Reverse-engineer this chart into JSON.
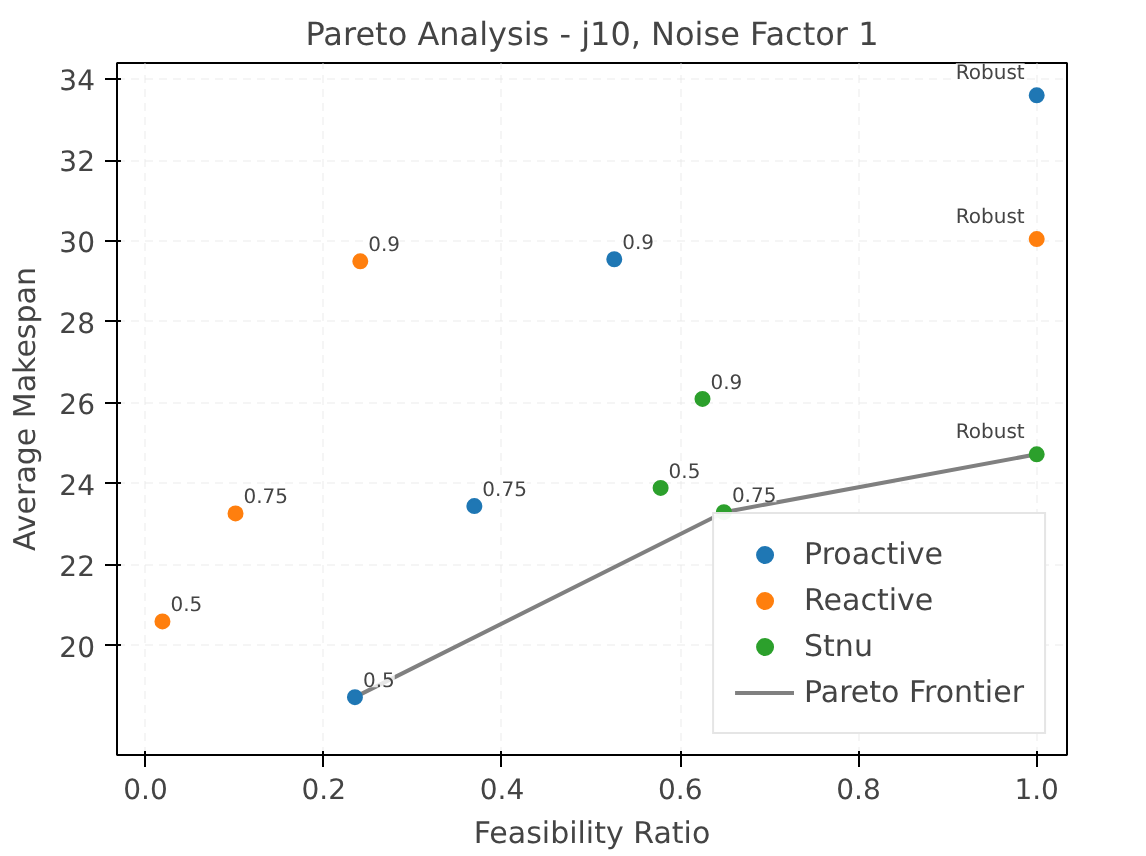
{
  "chart_data": {
    "type": "scatter",
    "title": "Pareto Analysis - j10, Noise Factor 1",
    "xlabel": "Feasibility Ratio",
    "ylabel": "Average Makespan",
    "xlim": [
      -0.032,
      1.034
    ],
    "ylim": [
      17.3,
      34.4
    ],
    "xticks": [
      {
        "value": 0,
        "label": "0.0"
      },
      0.2,
      0.4,
      0.6,
      0.8,
      {
        "value": 1,
        "label": "1.0"
      }
    ],
    "yticks": [
      20,
      22,
      24,
      26,
      28,
      30,
      32,
      34
    ],
    "grid": true,
    "legend": "bottom right",
    "series": [
      {
        "name": "Proactive",
        "color": "#1f77b4",
        "marker": "circle",
        "x": [
          1.0,
          0.526,
          0.369,
          0.235
        ],
        "values": [
          33.6,
          29.55,
          23.45,
          18.73
        ]
      },
      {
        "name": "Reactive",
        "color": "#ff7f0e",
        "marker": "circle",
        "x": [
          1.0,
          0.241,
          0.101,
          0.019
        ],
        "values": [
          30.05,
          29.5,
          23.27,
          20.6
        ]
      },
      {
        "name": "Stnu",
        "color": "#2ca02c",
        "marker": "circle",
        "x": [
          1.0,
          0.625,
          0.578,
          0.649
        ],
        "values": [
          24.73,
          26.1,
          23.9,
          23.3
        ]
      },
      {
        "name": "Pareto Frontier",
        "type": "line",
        "color": "#808080",
        "x": [
          0.235,
          0.649,
          1.0
        ],
        "values": [
          18.73,
          23.3,
          24.73
        ]
      }
    ],
    "annotations": [
      {
        "text": "Robust",
        "x": 1.0,
        "y": 33.6
      },
      {
        "text": "0.9",
        "x": 0.526,
        "y": 29.55
      },
      {
        "text": "0.75",
        "x": 0.369,
        "y": 23.45
      },
      {
        "text": "0.5",
        "x": 0.235,
        "y": 18.73
      },
      {
        "text": "Robust",
        "x": 1.0,
        "y": 30.05
      },
      {
        "text": "0.9",
        "x": 0.241,
        "y": 29.5
      },
      {
        "text": "0.75",
        "x": 0.101,
        "y": 23.27
      },
      {
        "text": "0.5",
        "x": 0.019,
        "y": 20.6
      },
      {
        "text": "Robust",
        "x": 1.0,
        "y": 24.73
      },
      {
        "text": "0.9",
        "x": 0.625,
        "y": 26.1
      },
      {
        "text": "0.5",
        "x": 0.578,
        "y": 23.9
      },
      {
        "text": "0.75",
        "x": 0.649,
        "y": 23.3
      }
    ]
  }
}
